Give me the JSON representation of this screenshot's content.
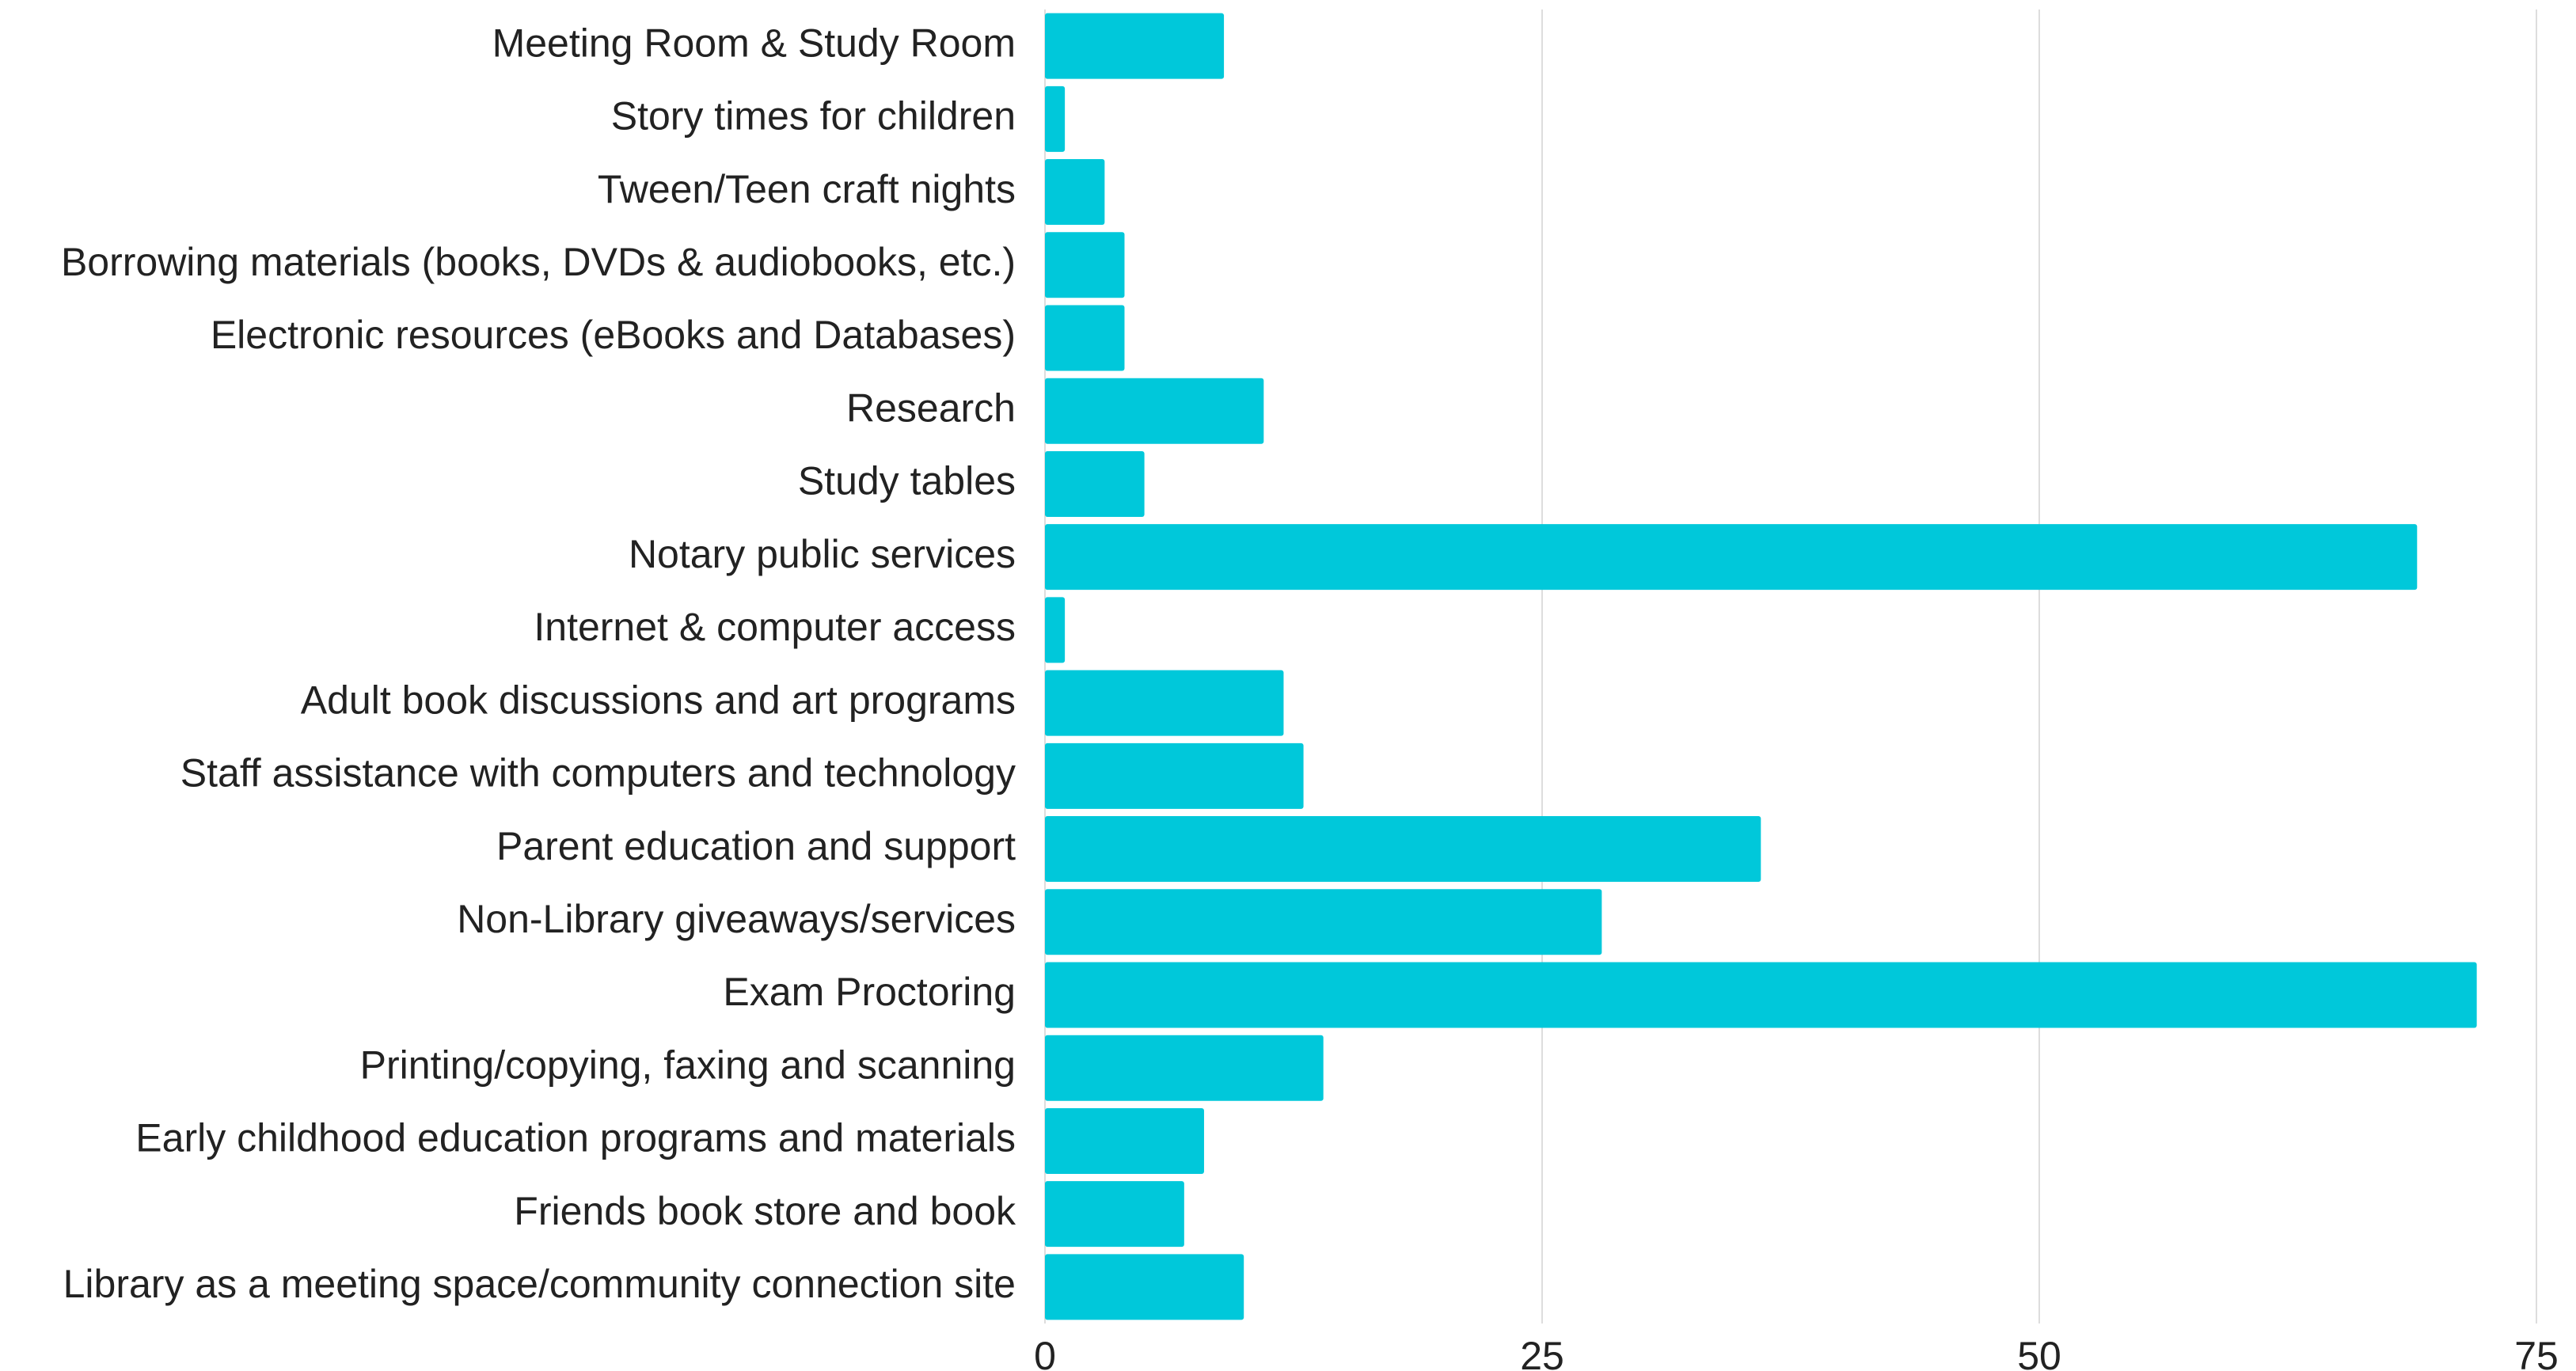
{
  "chart_data": {
    "type": "barh",
    "categories": [
      "Meeting Room & Study Room",
      "Story times for children",
      "Tween/Teen craft nights",
      "Borrowing materials (books, DVDs & audiobooks, etc.)",
      "Electronic resources (eBooks and Databases)",
      "Research",
      "Study tables",
      "Notary public services",
      "Internet & computer access",
      "Adult book discussions and art programs",
      "Staff assistance with computers and technology",
      "Parent education and support",
      "Non-Library giveaways/services",
      "Exam Proctoring",
      "Printing/copying, faxing and scanning",
      "Early childhood education programs and materials",
      "Friends book store and book",
      "Library as a meeting space/community connection site"
    ],
    "values": [
      9,
      1,
      3,
      4,
      4,
      11,
      5,
      69,
      1,
      12,
      13,
      36,
      28,
      72,
      14,
      8,
      7,
      10
    ],
    "color": "#00c8da",
    "xlim": [
      0,
      75
    ],
    "xticks": [
      0,
      25,
      50,
      75
    ],
    "grid": true
  }
}
